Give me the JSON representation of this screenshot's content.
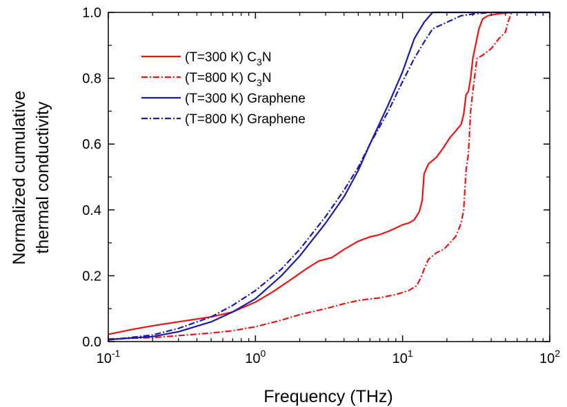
{
  "chart_data": {
    "type": "line",
    "xscale": "log",
    "xlim": [
      0.1,
      100
    ],
    "ylim": [
      0.0,
      1.0
    ],
    "xlabel": "Frequency (THz)",
    "ylabel": "Normalized cumulative thermal conductivity",
    "ylabel_lines": [
      "Normalized cumulative",
      "thermal conductivity"
    ],
    "x_ticks": [
      {
        "value": 0.1,
        "base": "10",
        "exp": "-1"
      },
      {
        "value": 1,
        "base": "10",
        "exp": "0"
      },
      {
        "value": 10,
        "base": "10",
        "exp": "1"
      },
      {
        "value": 100,
        "base": "10",
        "exp": "2"
      }
    ],
    "y_ticks": [
      {
        "value": 0.0,
        "label": "0.0"
      },
      {
        "value": 0.2,
        "label": "0.2"
      },
      {
        "value": 0.4,
        "label": "0.4"
      },
      {
        "value": 0.6,
        "label": "0.6"
      },
      {
        "value": 0.8,
        "label": "0.8"
      },
      {
        "value": 1.0,
        "label": "1.0"
      }
    ],
    "legend_position": "upper-left",
    "series": [
      {
        "name": "(T=300 K) C3N",
        "label_pre": "(T=300 K) C",
        "label_sub": "3",
        "label_post": "N",
        "color": "#ee1111",
        "style": "solid",
        "points": [
          [
            0.1,
            0.022
          ],
          [
            0.15,
            0.038
          ],
          [
            0.2,
            0.048
          ],
          [
            0.3,
            0.06
          ],
          [
            0.5,
            0.075
          ],
          [
            0.7,
            0.09
          ],
          [
            1.0,
            0.12
          ],
          [
            1.3,
            0.15
          ],
          [
            1.7,
            0.185
          ],
          [
            2.2,
            0.22
          ],
          [
            2.7,
            0.245
          ],
          [
            3.3,
            0.255
          ],
          [
            4.0,
            0.28
          ],
          [
            5.0,
            0.305
          ],
          [
            6.0,
            0.318
          ],
          [
            7.0,
            0.325
          ],
          [
            8.0,
            0.335
          ],
          [
            9.0,
            0.345
          ],
          [
            10,
            0.355
          ],
          [
            11,
            0.36
          ],
          [
            12,
            0.37
          ],
          [
            13,
            0.395
          ],
          [
            13.6,
            0.43
          ],
          [
            14.0,
            0.51
          ],
          [
            15,
            0.54
          ],
          [
            17,
            0.56
          ],
          [
            19,
            0.59
          ],
          [
            21,
            0.62
          ],
          [
            23,
            0.64
          ],
          [
            25,
            0.66
          ],
          [
            26,
            0.69
          ],
          [
            27,
            0.75
          ],
          [
            28,
            0.76
          ],
          [
            29,
            0.8
          ],
          [
            30,
            0.86
          ],
          [
            31,
            0.89
          ],
          [
            33,
            0.95
          ],
          [
            35,
            0.98
          ],
          [
            38,
            0.99
          ],
          [
            45,
            0.996
          ],
          [
            55,
            1.0
          ]
        ]
      },
      {
        "name": "(T=800 K) C3N",
        "label_pre": "(T=800 K) C",
        "label_sub": "3",
        "label_post": "N",
        "color": "#ee1111",
        "style": "dashdot",
        "points": [
          [
            0.1,
            0.008
          ],
          [
            0.2,
            0.012
          ],
          [
            0.3,
            0.018
          ],
          [
            0.5,
            0.026
          ],
          [
            0.7,
            0.033
          ],
          [
            1.0,
            0.045
          ],
          [
            1.5,
            0.065
          ],
          [
            2.0,
            0.082
          ],
          [
            3.0,
            0.1
          ],
          [
            4.0,
            0.115
          ],
          [
            5.0,
            0.125
          ],
          [
            7.0,
            0.133
          ],
          [
            9.0,
            0.143
          ],
          [
            11,
            0.155
          ],
          [
            12.5,
            0.17
          ],
          [
            13.5,
            0.2
          ],
          [
            14,
            0.22
          ],
          [
            15,
            0.25
          ],
          [
            17,
            0.27
          ],
          [
            19,
            0.28
          ],
          [
            21,
            0.3
          ],
          [
            23,
            0.32
          ],
          [
            25,
            0.36
          ],
          [
            26,
            0.4
          ],
          [
            27,
            0.52
          ],
          [
            28,
            0.57
          ],
          [
            29,
            0.7
          ],
          [
            30,
            0.76
          ],
          [
            32,
            0.86
          ],
          [
            35,
            0.87
          ],
          [
            40,
            0.89
          ],
          [
            45,
            0.92
          ],
          [
            50,
            0.94
          ],
          [
            52,
            0.97
          ],
          [
            55,
            1.0
          ]
        ]
      },
      {
        "name": "(T=300 K) Graphene",
        "label_pre": "(T=300 K) Graphene",
        "label_sub": "",
        "label_post": "",
        "color": "#1a1aaa",
        "style": "solid",
        "points": [
          [
            0.1,
            0.006
          ],
          [
            0.2,
            0.015
          ],
          [
            0.3,
            0.03
          ],
          [
            0.5,
            0.06
          ],
          [
            0.7,
            0.09
          ],
          [
            1.0,
            0.13
          ],
          [
            1.5,
            0.2
          ],
          [
            2.0,
            0.26
          ],
          [
            3.0,
            0.36
          ],
          [
            4.0,
            0.44
          ],
          [
            5.0,
            0.52
          ],
          [
            6.0,
            0.6
          ],
          [
            8.0,
            0.72
          ],
          [
            10,
            0.82
          ],
          [
            12,
            0.92
          ],
          [
            14,
            0.97
          ],
          [
            16,
            1.0
          ],
          [
            100,
            1.0
          ]
        ]
      },
      {
        "name": "(T=800 K) Graphene",
        "label_pre": "(T=800 K) Graphene",
        "label_sub": "",
        "label_post": "",
        "color": "#1a1aaa",
        "style": "dashdot",
        "points": [
          [
            0.1,
            0.005
          ],
          [
            0.2,
            0.02
          ],
          [
            0.3,
            0.04
          ],
          [
            0.5,
            0.075
          ],
          [
            0.7,
            0.11
          ],
          [
            1.0,
            0.155
          ],
          [
            1.5,
            0.22
          ],
          [
            2.0,
            0.28
          ],
          [
            3.0,
            0.38
          ],
          [
            4.0,
            0.46
          ],
          [
            5.0,
            0.53
          ],
          [
            6.0,
            0.6
          ],
          [
            8.0,
            0.7
          ],
          [
            10,
            0.79
          ],
          [
            12,
            0.86
          ],
          [
            14,
            0.91
          ],
          [
            16,
            0.95
          ],
          [
            20,
            0.97
          ],
          [
            25,
            0.99
          ],
          [
            30,
            0.995
          ],
          [
            40,
            1.0
          ],
          [
            100,
            1.0
          ]
        ]
      }
    ]
  }
}
